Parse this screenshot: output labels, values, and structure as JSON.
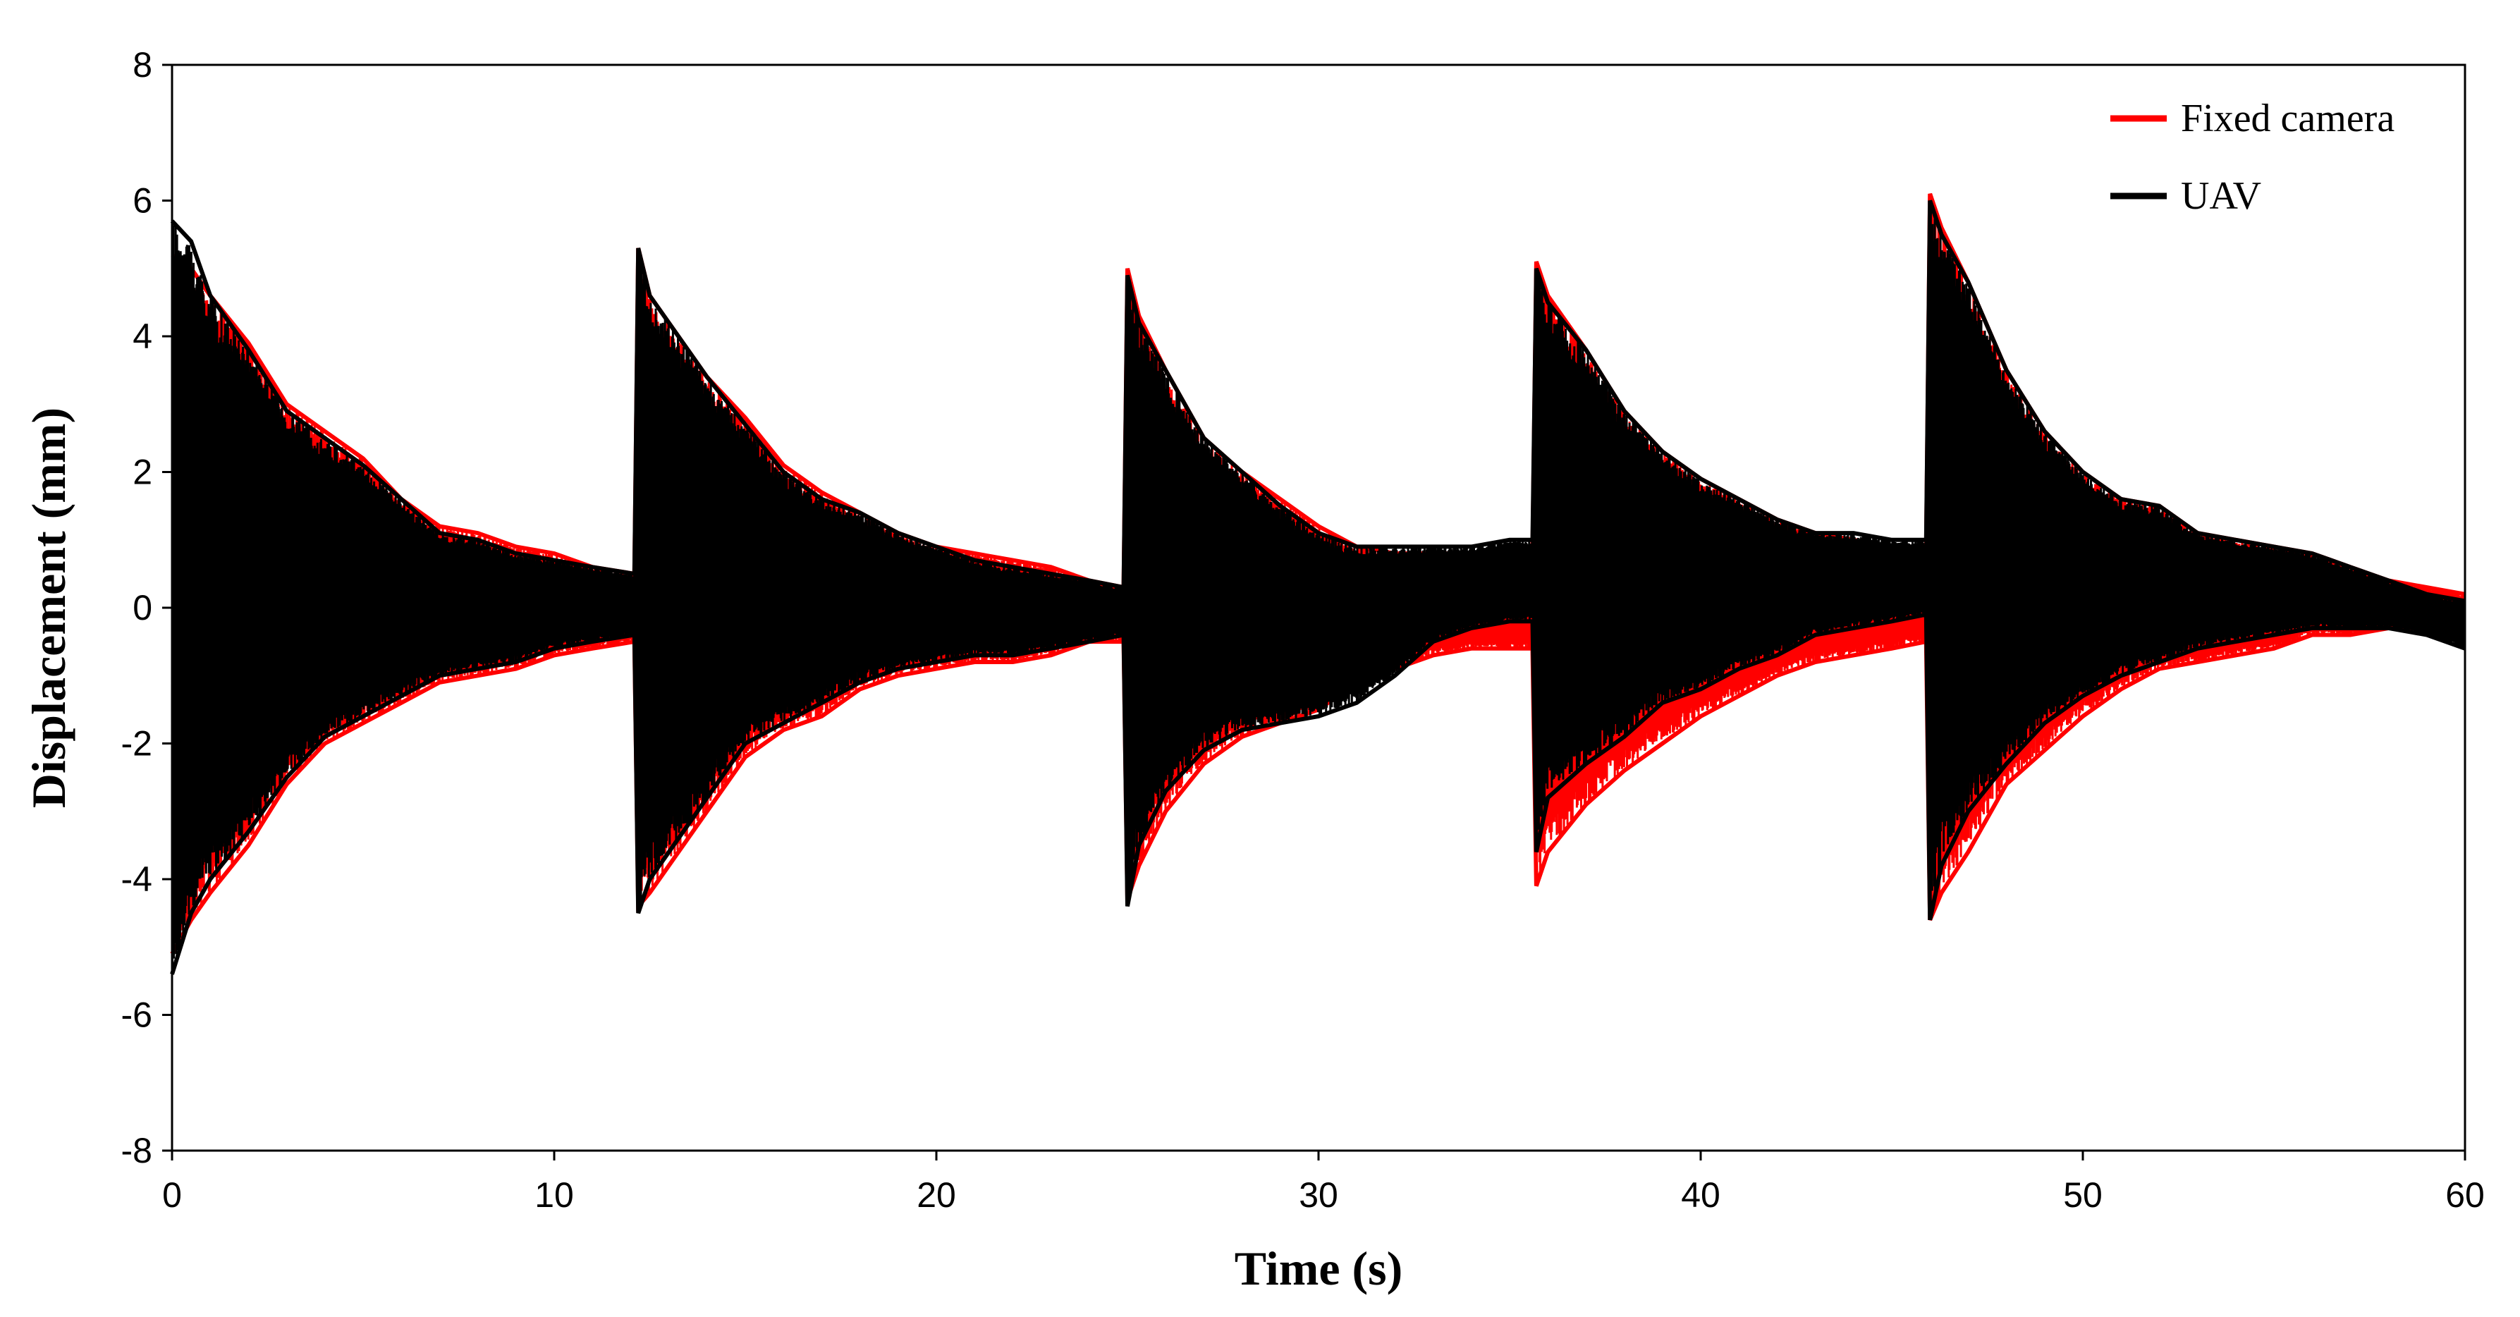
{
  "chart_data": {
    "type": "line",
    "title": "",
    "xlabel": "Time (s)",
    "ylabel": "Displacement (mm)",
    "xlim": [
      0,
      60
    ],
    "ylim": [
      -8,
      8
    ],
    "xticks": [
      0,
      10,
      20,
      30,
      40,
      50,
      60
    ],
    "yticks": [
      -8,
      -6,
      -4,
      -2,
      0,
      2,
      4,
      6,
      8
    ],
    "xtick_labels": [
      "0",
      "10",
      "20",
      "30",
      "40",
      "50",
      "60"
    ],
    "ytick_labels": [
      "-8",
      "-6",
      "-4",
      "-2",
      "0",
      "2",
      "4",
      "6",
      "8"
    ],
    "grid": false,
    "legend_position": "top-right",
    "series": [
      {
        "name": "Fixed camera",
        "color": "#ff0000",
        "envelope_x": [
          0,
          0.5,
          1,
          2,
          3,
          4,
          5,
          6,
          7,
          8,
          9,
          10,
          11,
          12.1,
          12.2,
          12.5,
          13,
          14,
          15,
          16,
          17,
          18,
          19,
          20,
          21,
          22,
          23,
          24,
          24.9,
          25.0,
          25.3,
          26,
          27,
          28,
          29,
          30,
          31,
          32,
          33,
          34,
          35,
          35.6,
          35.7,
          36,
          37,
          38,
          39,
          40,
          41,
          42,
          43,
          44,
          45,
          45.9,
          46.0,
          46.3,
          47,
          48,
          49,
          50,
          51,
          52,
          53,
          54,
          55,
          56,
          57,
          58,
          59,
          60
        ],
        "upper": [
          5.2,
          5.0,
          4.6,
          3.9,
          3.0,
          2.6,
          2.2,
          1.6,
          1.2,
          1.1,
          0.9,
          0.8,
          0.6,
          0.5,
          5.3,
          4.6,
          4.2,
          3.4,
          2.8,
          2.1,
          1.7,
          1.4,
          1.1,
          0.9,
          0.8,
          0.7,
          0.6,
          0.4,
          0.3,
          5.0,
          4.3,
          3.5,
          2.5,
          2.0,
          1.6,
          1.2,
          0.9,
          0.8,
          0.8,
          0.8,
          0.8,
          0.8,
          5.1,
          4.6,
          3.8,
          2.9,
          2.3,
          1.9,
          1.6,
          1.3,
          1.1,
          1.0,
          0.9,
          0.9,
          6.1,
          5.6,
          4.8,
          3.5,
          2.6,
          2.0,
          1.6,
          1.5,
          1.1,
          1.0,
          0.9,
          0.8,
          0.6,
          0.4,
          0.3,
          0.2
        ],
        "lower": [
          -5.1,
          -4.6,
          -4.2,
          -3.5,
          -2.6,
          -2.0,
          -1.7,
          -1.4,
          -1.1,
          -1.0,
          -0.9,
          -0.7,
          -0.6,
          -0.5,
          -4.4,
          -4.2,
          -3.8,
          -3.0,
          -2.2,
          -1.8,
          -1.6,
          -1.2,
          -1.0,
          -0.9,
          -0.8,
          -0.8,
          -0.7,
          -0.5,
          -0.5,
          -4.3,
          -3.8,
          -3.0,
          -2.3,
          -1.9,
          -1.7,
          -1.5,
          -1.1,
          -0.9,
          -0.7,
          -0.6,
          -0.6,
          -0.6,
          -4.1,
          -3.6,
          -2.9,
          -2.4,
          -2.0,
          -1.6,
          -1.3,
          -1.0,
          -0.8,
          -0.7,
          -0.6,
          -0.5,
          -4.6,
          -4.2,
          -3.6,
          -2.6,
          -2.1,
          -1.6,
          -1.2,
          -0.9,
          -0.8,
          -0.7,
          -0.6,
          -0.4,
          -0.4,
          -0.3,
          -0.3,
          -0.4
        ]
      },
      {
        "name": "UAV",
        "color": "#000000",
        "envelope_x": [
          0,
          0.5,
          1,
          2,
          3,
          4,
          5,
          6,
          7,
          8,
          9,
          10,
          11,
          12.1,
          12.2,
          12.5,
          13,
          14,
          15,
          16,
          17,
          18,
          19,
          20,
          21,
          22,
          23,
          24,
          24.9,
          25.0,
          25.3,
          26,
          27,
          28,
          29,
          30,
          31,
          32,
          33,
          34,
          35,
          35.6,
          35.7,
          36,
          37,
          38,
          39,
          40,
          41,
          42,
          43,
          44,
          45,
          45.9,
          46.0,
          46.3,
          47,
          48,
          49,
          50,
          51,
          52,
          53,
          54,
          55,
          56,
          57,
          58,
          59,
          60
        ],
        "upper": [
          5.7,
          5.4,
          4.6,
          3.8,
          2.9,
          2.5,
          2.1,
          1.6,
          1.1,
          1.0,
          0.8,
          0.7,
          0.6,
          0.5,
          5.3,
          4.6,
          4.2,
          3.4,
          2.7,
          2.0,
          1.6,
          1.4,
          1.1,
          0.9,
          0.7,
          0.6,
          0.5,
          0.4,
          0.3,
          4.9,
          4.2,
          3.5,
          2.5,
          2.0,
          1.5,
          1.1,
          0.9,
          0.9,
          0.9,
          0.9,
          1.0,
          1.0,
          5.0,
          4.5,
          3.8,
          2.9,
          2.3,
          1.9,
          1.6,
          1.3,
          1.1,
          1.1,
          1.0,
          1.0,
          6.0,
          5.5,
          4.8,
          3.5,
          2.6,
          2.0,
          1.6,
          1.5,
          1.1,
          1.0,
          0.9,
          0.8,
          0.6,
          0.4,
          0.2,
          0.1
        ],
        "lower": [
          -5.4,
          -4.5,
          -4.0,
          -3.3,
          -2.5,
          -1.9,
          -1.6,
          -1.3,
          -1.0,
          -0.9,
          -0.8,
          -0.6,
          -0.5,
          -0.4,
          -4.5,
          -4.0,
          -3.6,
          -2.8,
          -2.0,
          -1.7,
          -1.4,
          -1.1,
          -0.9,
          -0.8,
          -0.7,
          -0.7,
          -0.6,
          -0.5,
          -0.4,
          -4.4,
          -3.5,
          -2.7,
          -2.1,
          -1.8,
          -1.7,
          -1.6,
          -1.4,
          -1.0,
          -0.5,
          -0.3,
          -0.2,
          -0.2,
          -3.6,
          -2.8,
          -2.3,
          -1.9,
          -1.4,
          -1.2,
          -0.9,
          -0.7,
          -0.4,
          -0.3,
          -0.2,
          -0.1,
          -4.6,
          -3.8,
          -3.0,
          -2.3,
          -1.7,
          -1.3,
          -1.0,
          -0.8,
          -0.6,
          -0.5,
          -0.4,
          -0.3,
          -0.3,
          -0.3,
          -0.4,
          -0.6
        ]
      }
    ]
  }
}
